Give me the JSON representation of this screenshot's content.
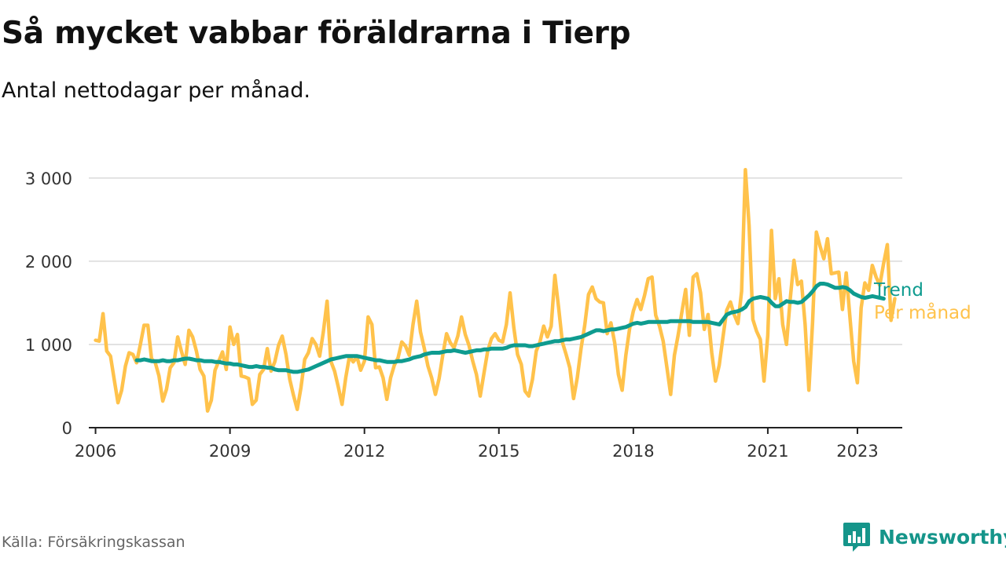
{
  "title": "Så mycket vabbar föräldrarna i Tierp",
  "subtitle": "Antal nettodagar per månad.",
  "source": "Källa: Försäkringskassan",
  "brand": "Newsworthy",
  "colors": {
    "trend": "#0e9b8f",
    "monthly": "#ffc24b",
    "axis": "#222222",
    "grid": "#d9d9d9"
  },
  "chart_data": {
    "type": "line",
    "title": "Så mycket vabbar föräldrarna i Tierp",
    "subtitle": "Antal nettodagar per månad.",
    "xlabel": "",
    "ylabel": "",
    "xlim": [
      2005.85,
      2024.0
    ],
    "ylim": [
      0,
      3300
    ],
    "grid": true,
    "yticks": [
      {
        "value": 0,
        "label": "0"
      },
      {
        "value": 1000,
        "label": "1 000"
      },
      {
        "value": 2000,
        "label": "2 000"
      },
      {
        "value": 3000,
        "label": "3 000"
      }
    ],
    "xticks": [
      {
        "value": 2006,
        "label": "2006"
      },
      {
        "value": 2009,
        "label": "2009"
      },
      {
        "value": 2012,
        "label": "2012"
      },
      {
        "value": 2015,
        "label": "2015"
      },
      {
        "value": 2018,
        "label": "2018"
      },
      {
        "value": 2021,
        "label": "2021"
      },
      {
        "value": 2023,
        "label": "2023"
      }
    ],
    "series": [
      {
        "name": "Per månad",
        "color": "#ffc24b",
        "x_start": 2006.0,
        "x_step": 0.08333,
        "values": [
          1050,
          1040,
          1370,
          920,
          860,
          580,
          300,
          450,
          740,
          900,
          880,
          780,
          1000,
          1230,
          1230,
          830,
          780,
          620,
          320,
          460,
          720,
          780,
          1090,
          920,
          760,
          1170,
          1090,
          920,
          700,
          620,
          200,
          330,
          690,
          800,
          910,
          700,
          1210,
          1000,
          1120,
          620,
          610,
          590,
          280,
          330,
          640,
          700,
          950,
          680,
          790,
          990,
          1100,
          880,
          580,
          390,
          220,
          480,
          820,
          900,
          1070,
          1000,
          860,
          1150,
          1520,
          800,
          680,
          490,
          280,
          600,
          860,
          790,
          850,
          690,
          800,
          1330,
          1240,
          720,
          730,
          600,
          340,
          600,
          750,
          840,
          1030,
          980,
          870,
          1240,
          1520,
          1150,
          960,
          740,
          600,
          400,
          590,
          880,
          1130,
          1020,
          960,
          1100,
          1330,
          1120,
          990,
          800,
          640,
          380,
          650,
          920,
          1070,
          1130,
          1050,
          1030,
          1240,
          1620,
          1200,
          880,
          760,
          440,
          380,
          580,
          920,
          1030,
          1220,
          1090,
          1220,
          1830,
          1440,
          1030,
          880,
          720,
          350,
          600,
          950,
          1230,
          1600,
          1690,
          1550,
          1510,
          1500,
          1130,
          1260,
          1020,
          640,
          450,
          870,
          1190,
          1400,
          1540,
          1420,
          1590,
          1790,
          1810,
          1350,
          1220,
          1040,
          720,
          400,
          870,
          1110,
          1390,
          1660,
          1110,
          1810,
          1850,
          1620,
          1180,
          1360,
          900,
          560,
          750,
          1090,
          1410,
          1510,
          1360,
          1250,
          1640,
          3100,
          2430,
          1300,
          1160,
          1060,
          560,
          1110,
          2370,
          1550,
          1790,
          1240,
          1000,
          1540,
          2010,
          1720,
          1760,
          1240,
          450,
          1270,
          2350,
          2180,
          2030,
          2270,
          1850,
          1860,
          1870,
          1420,
          1860,
          1330,
          800,
          540,
          1440,
          1740,
          1650,
          1950,
          1810,
          1710,
          1970,
          2200,
          1290,
          1550
        ]
      },
      {
        "name": "Trend",
        "color": "#0e9b8f",
        "x_start": 2006.92,
        "x_step": 0.08333,
        "values": [
          810,
          810,
          820,
          810,
          800,
          800,
          800,
          810,
          800,
          800,
          810,
          810,
          820,
          830,
          830,
          820,
          810,
          810,
          800,
          800,
          800,
          790,
          790,
          780,
          770,
          770,
          760,
          760,
          750,
          740,
          730,
          730,
          740,
          730,
          730,
          720,
          720,
          700,
          690,
          690,
          690,
          680,
          670,
          670,
          680,
          690,
          700,
          720,
          740,
          760,
          780,
          800,
          820,
          830,
          840,
          850,
          860,
          860,
          860,
          860,
          850,
          840,
          830,
          820,
          810,
          810,
          800,
          790,
          790,
          790,
          800,
          800,
          810,
          820,
          840,
          850,
          860,
          880,
          890,
          900,
          900,
          900,
          910,
          920,
          920,
          930,
          920,
          910,
          900,
          910,
          920,
          930,
          930,
          940,
          940,
          950,
          950,
          950,
          950,
          960,
          980,
          990,
          990,
          990,
          990,
          980,
          980,
          990,
          1000,
          1010,
          1020,
          1030,
          1040,
          1040,
          1050,
          1060,
          1060,
          1070,
          1080,
          1090,
          1110,
          1130,
          1150,
          1170,
          1170,
          1160,
          1170,
          1180,
          1180,
          1190,
          1200,
          1210,
          1230,
          1250,
          1260,
          1250,
          1260,
          1270,
          1270,
          1270,
          1270,
          1270,
          1270,
          1280,
          1280,
          1280,
          1280,
          1280,
          1280,
          1270,
          1270,
          1270,
          1270,
          1270,
          1260,
          1250,
          1240,
          1300,
          1360,
          1380,
          1390,
          1400,
          1420,
          1450,
          1520,
          1550,
          1560,
          1570,
          1560,
          1550,
          1500,
          1460,
          1460,
          1490,
          1520,
          1510,
          1510,
          1500,
          1510,
          1550,
          1590,
          1640,
          1700,
          1730,
          1730,
          1720,
          1700,
          1680,
          1680,
          1690,
          1680,
          1650,
          1610,
          1590,
          1570,
          1560,
          1570,
          1580,
          1570,
          1560,
          1550
        ]
      }
    ],
    "legend": {
      "placement": "right-end",
      "entries": [
        "Trend",
        "Per månad"
      ]
    }
  }
}
